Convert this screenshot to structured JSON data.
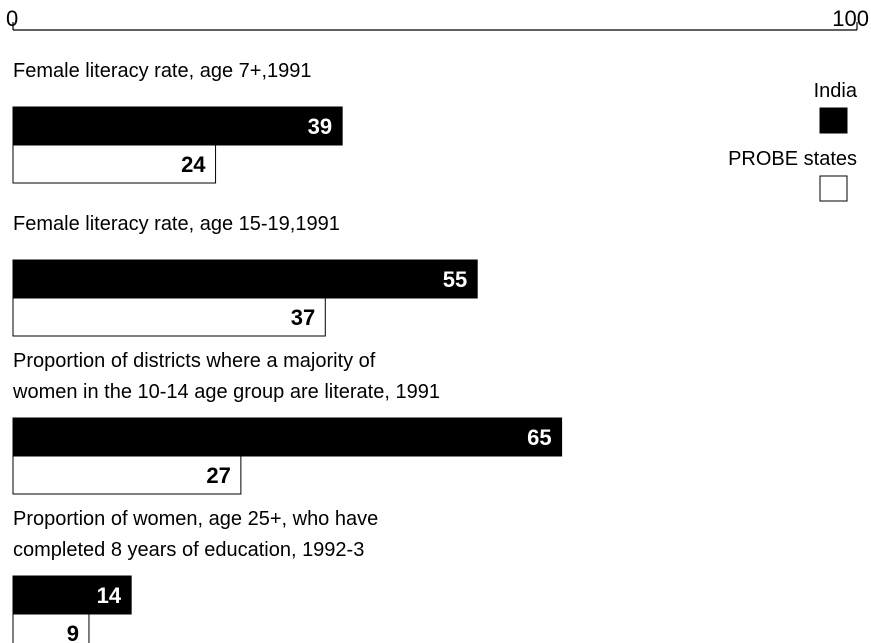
{
  "chart_data": {
    "type": "bar",
    "orientation": "horizontal",
    "categories": [
      [
        "Female literacy rate, age 7+,1991"
      ],
      [
        "Female literacy rate, age 15-19,1991"
      ],
      [
        "Proportion of districts where a majority of",
        "women in the 10-14 age group are literate, 1991"
      ],
      [
        "Proportion of women, age 25+,  who have",
        "completed 8 years of education, 1992-3"
      ]
    ],
    "series": [
      {
        "name": "India",
        "color": "#000000",
        "values": [
          39,
          55,
          65,
          14
        ]
      },
      {
        "name": "PROBE states",
        "color": "#ffffff",
        "values": [
          24,
          37,
          27,
          9
        ]
      }
    ],
    "xlim": [
      0,
      100
    ],
    "xticks": [
      0,
      100
    ],
    "legend": "top-right"
  }
}
